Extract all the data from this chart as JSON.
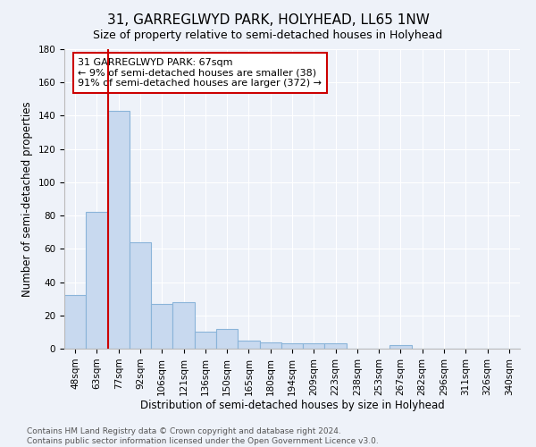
{
  "title": "31, GARREGLWYD PARK, HOLYHEAD, LL65 1NW",
  "subtitle": "Size of property relative to semi-detached houses in Holyhead",
  "xlabel": "Distribution of semi-detached houses by size in Holyhead",
  "ylabel": "Number of semi-detached properties",
  "categories": [
    "48sqm",
    "63sqm",
    "77sqm",
    "92sqm",
    "106sqm",
    "121sqm",
    "136sqm",
    "150sqm",
    "165sqm",
    "180sqm",
    "194sqm",
    "209sqm",
    "223sqm",
    "238sqm",
    "253sqm",
    "267sqm",
    "282sqm",
    "296sqm",
    "311sqm",
    "326sqm",
    "340sqm"
  ],
  "values": [
    32,
    82,
    143,
    64,
    27,
    28,
    10,
    12,
    5,
    4,
    3,
    3,
    3,
    0,
    0,
    2,
    0,
    0,
    0,
    0,
    0
  ],
  "bar_color": "#c8d9ef",
  "bar_edge_color": "#8ab4d9",
  "property_line_color": "#cc0000",
  "property_line_bar_index": 1.5,
  "annotation_title": "31 GARREGLWYD PARK: 67sqm",
  "annotation_line1": "← 9% of semi-detached houses are smaller (38)",
  "annotation_line2": "91% of semi-detached houses are larger (372) →",
  "annotation_box_color": "#cc0000",
  "ylim": [
    0,
    180
  ],
  "yticks": [
    0,
    20,
    40,
    60,
    80,
    100,
    120,
    140,
    160,
    180
  ],
  "footnote1": "Contains HM Land Registry data © Crown copyright and database right 2024.",
  "footnote2": "Contains public sector information licensed under the Open Government Licence v3.0.",
  "bg_color": "#eef2f9",
  "title_fontsize": 11,
  "subtitle_fontsize": 9,
  "axis_label_fontsize": 8.5,
  "tick_fontsize": 7.5,
  "annotation_fontsize": 8,
  "footnote_fontsize": 6.5
}
